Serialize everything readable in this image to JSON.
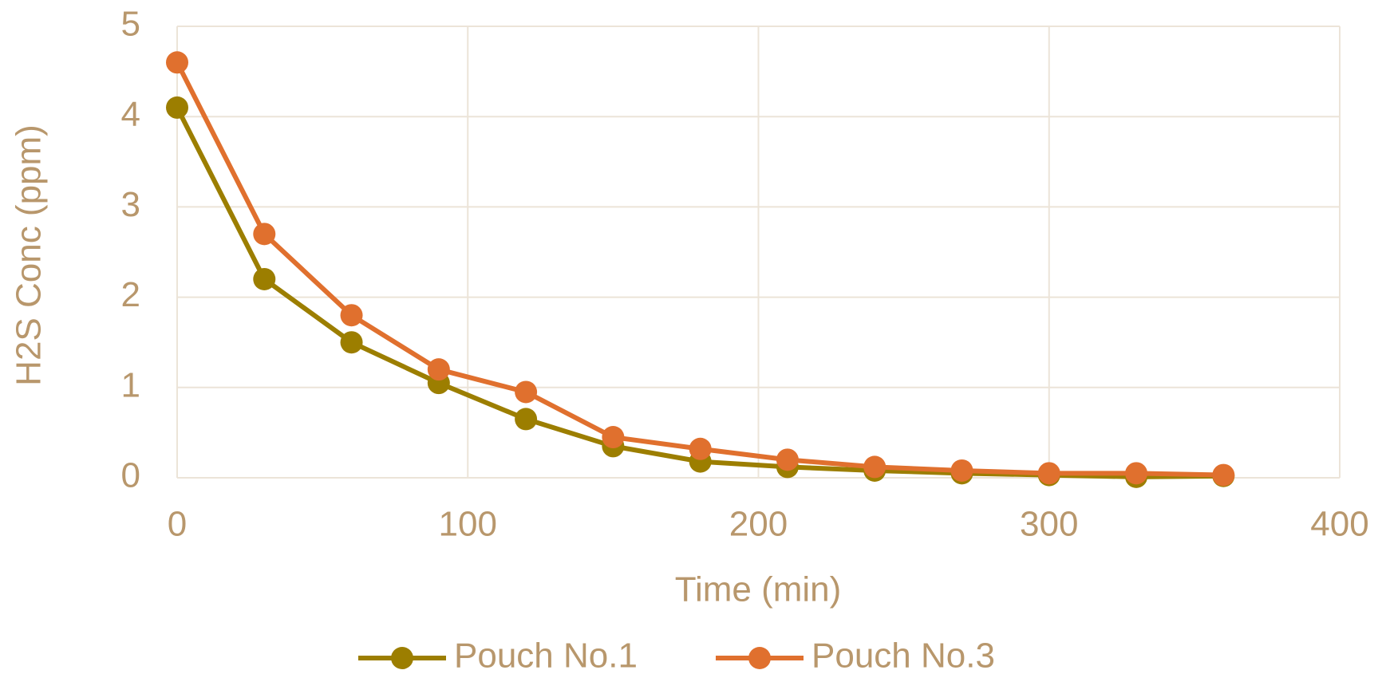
{
  "chart_data": {
    "type": "line",
    "x_label": "Time (min)",
    "y_label": "H2S Conc (ppm)",
    "x": [
      0,
      30,
      60,
      90,
      120,
      150,
      180,
      210,
      240,
      270,
      300,
      330,
      360
    ],
    "series": [
      {
        "name": "Pouch No.1",
        "color": "#9c7e00",
        "values": [
          4.1,
          2.2,
          1.5,
          1.05,
          0.65,
          0.35,
          0.18,
          0.12,
          0.08,
          0.05,
          0.03,
          0.01,
          0.02
        ]
      },
      {
        "name": "Pouch No.3",
        "color": "#e0702e",
        "values": [
          4.6,
          2.7,
          1.8,
          1.2,
          0.95,
          0.45,
          0.32,
          0.2,
          0.12,
          0.08,
          0.05,
          0.05,
          0.03
        ]
      }
    ],
    "xlim": [
      0,
      400
    ],
    "xticks": [
      0,
      100,
      200,
      300,
      400
    ],
    "ylim": [
      0,
      5
    ],
    "yticks": [
      0,
      1,
      2,
      3,
      4,
      5
    ],
    "grid": true,
    "legend": "bottom"
  }
}
